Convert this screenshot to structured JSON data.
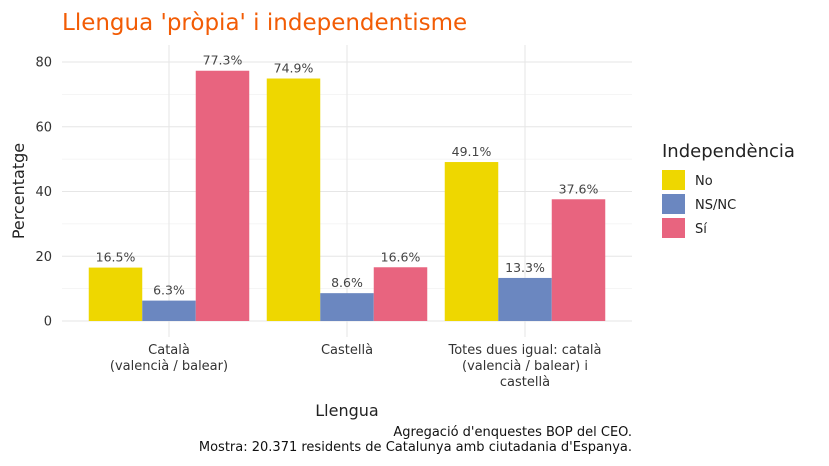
{
  "chart_data": {
    "type": "bar",
    "title": "Llengua 'pròpia' i independentisme",
    "xlabel": "Llengua",
    "ylabel": "Percentatge",
    "categories": [
      [
        "Català",
        "(valencià / balear)"
      ],
      [
        "Castellà"
      ],
      [
        "Totes dues igual: català",
        "(valencià / balear) i",
        "castellà"
      ]
    ],
    "series": [
      {
        "name": "No",
        "color": "#eed700",
        "values": [
          16.5,
          74.9,
          49.1
        ],
        "labels": [
          "16.5%",
          "74.9%",
          "49.1%"
        ]
      },
      {
        "name": "NS/NC",
        "color": "#6b87c0",
        "values": [
          6.3,
          8.6,
          13.3
        ],
        "labels": [
          "6.3%",
          "8.6%",
          "13.3%"
        ]
      },
      {
        "name": "Sí",
        "color": "#e8647f",
        "values": [
          77.3,
          16.6,
          37.6
        ],
        "labels": [
          "77.3%",
          "16.6%",
          "37.6%"
        ]
      }
    ],
    "ylim": [
      0,
      85
    ],
    "yticks": [
      0,
      20,
      40,
      60,
      80
    ],
    "legend": {
      "title": "Independència",
      "position": "right"
    },
    "grid": true,
    "caption": [
      "Agregació d'enquestes BOP del CEO.",
      "Mostra: 20.371 residents de Catalunya amb ciutadania d'Espanya."
    ]
  }
}
